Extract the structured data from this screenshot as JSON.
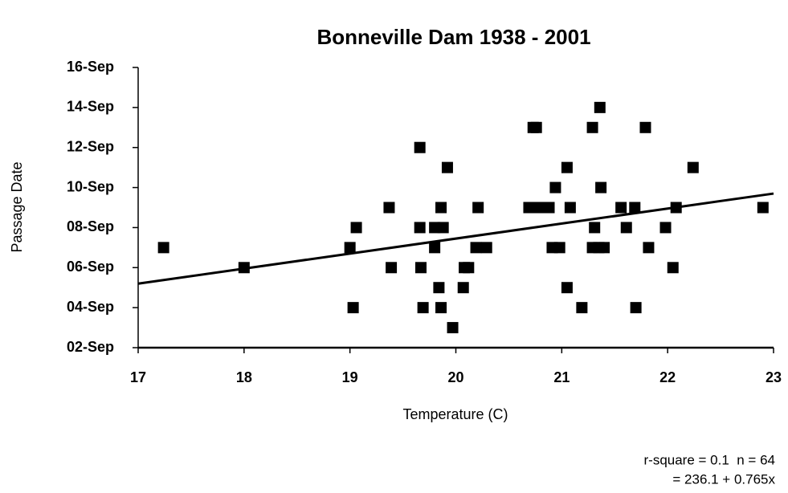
{
  "chart_data": {
    "type": "scatter",
    "title": "Bonneville Dam 1938 - 2001",
    "x_label": "Temperature (C)",
    "y_label": "Passage Date",
    "notes": [
      "r-square = 0.1  n = 64",
      "= 236.1 + 0.765x"
    ],
    "color": "#000000",
    "xlim": [
      17,
      23
    ],
    "xticks": [
      17,
      18,
      19,
      20,
      21,
      22,
      23
    ],
    "ylim": [
      2,
      16
    ],
    "yticks": [
      {
        "value": 2,
        "label": "02-Sep"
      },
      {
        "value": 4,
        "label": "04-Sep"
      },
      {
        "value": 6,
        "label": "06-Sep"
      },
      {
        "value": 8,
        "label": "08-Sep"
      },
      {
        "value": 10,
        "label": "10-Sep"
      },
      {
        "value": 12,
        "label": "12-Sep"
      },
      {
        "value": 14,
        "label": "14-Sep"
      },
      {
        "value": 16,
        "label": "16-Sep"
      }
    ],
    "x": [
      17.24,
      18.0,
      19.0,
      19.06,
      19.03,
      19.37,
      19.39,
      19.66,
      19.66,
      19.67,
      19.69,
      19.8,
      19.8,
      19.84,
      19.86,
      19.97,
      19.86,
      19.88,
      19.92,
      20.07,
      20.08,
      20.12,
      20.21,
      20.19,
      20.29,
      20.69,
      20.76,
      20.82,
      20.88,
      20.73,
      20.76,
      20.84,
      20.91,
      20.98,
      20.94,
      21.05,
      21.05,
      21.08,
      21.19,
      21.29,
      21.35,
      21.4,
      21.29,
      21.31,
      21.36,
      21.37,
      21.56,
      21.61,
      21.69,
      21.7,
      21.79,
      21.82,
      21.98,
      22.05,
      22.08,
      22.24,
      22.9
    ],
    "values": [
      7,
      6,
      7,
      8,
      4,
      9,
      6,
      12,
      8,
      6,
      4,
      8,
      7,
      5,
      4,
      3,
      9,
      8,
      11,
      5,
      6,
      6,
      9,
      7,
      7,
      9,
      9,
      9,
      9,
      13,
      13,
      9,
      7,
      7,
      10,
      11,
      5,
      9,
      4,
      7,
      7,
      7,
      13,
      8,
      14,
      10,
      9,
      8,
      9,
      4,
      13,
      7,
      8,
      6,
      9,
      11,
      9
    ],
    "trendline": {
      "x": [
        17,
        23
      ],
      "values": [
        5.2,
        9.7
      ]
    }
  }
}
